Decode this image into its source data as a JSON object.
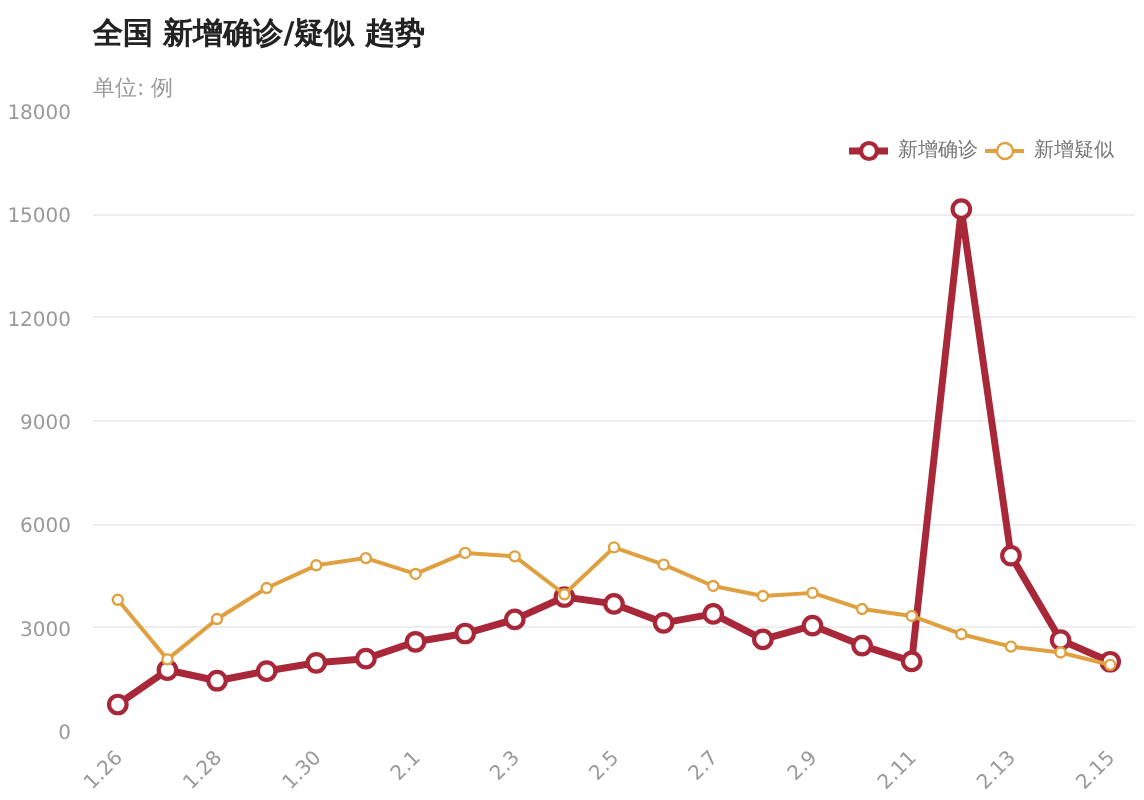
{
  "chart_data": {
    "type": "line",
    "title": "全国 新增确诊/疑似 趋势",
    "subtitle": "单位: 例",
    "categories": [
      "1.26",
      null,
      "1.28",
      null,
      "1.30",
      null,
      "2.1",
      null,
      "2.3",
      null,
      "2.5",
      null,
      "2.7",
      null,
      "2.9",
      null,
      "2.11",
      null,
      "2.13",
      null,
      "2.15"
    ],
    "series": [
      {
        "name": "新增确诊",
        "color": "#a8283a",
        "values": [
          770,
          1770,
          1460,
          1740,
          1980,
          2100,
          2590,
          2830,
          3240,
          3890,
          3690,
          3140,
          3400,
          2660,
          3060,
          2480,
          2020,
          15150,
          5090,
          2640,
          2010
        ]
      },
      {
        "name": "新增疑似",
        "color": "#e0a040",
        "values": [
          3810,
          2080,
          3250,
          4150,
          4810,
          5020,
          4560,
          5170,
          5070,
          3970,
          5330,
          4830,
          4210,
          3920,
          4010,
          3540,
          3340,
          2810,
          2450,
          2280,
          1920
        ]
      }
    ],
    "ylim": [
      0,
      18000
    ],
    "yticks": [
      0,
      3000,
      6000,
      9000,
      12000,
      15000,
      18000
    ],
    "grid": "y",
    "legend": "top right",
    "marker": "circle",
    "line_style": "solid"
  }
}
